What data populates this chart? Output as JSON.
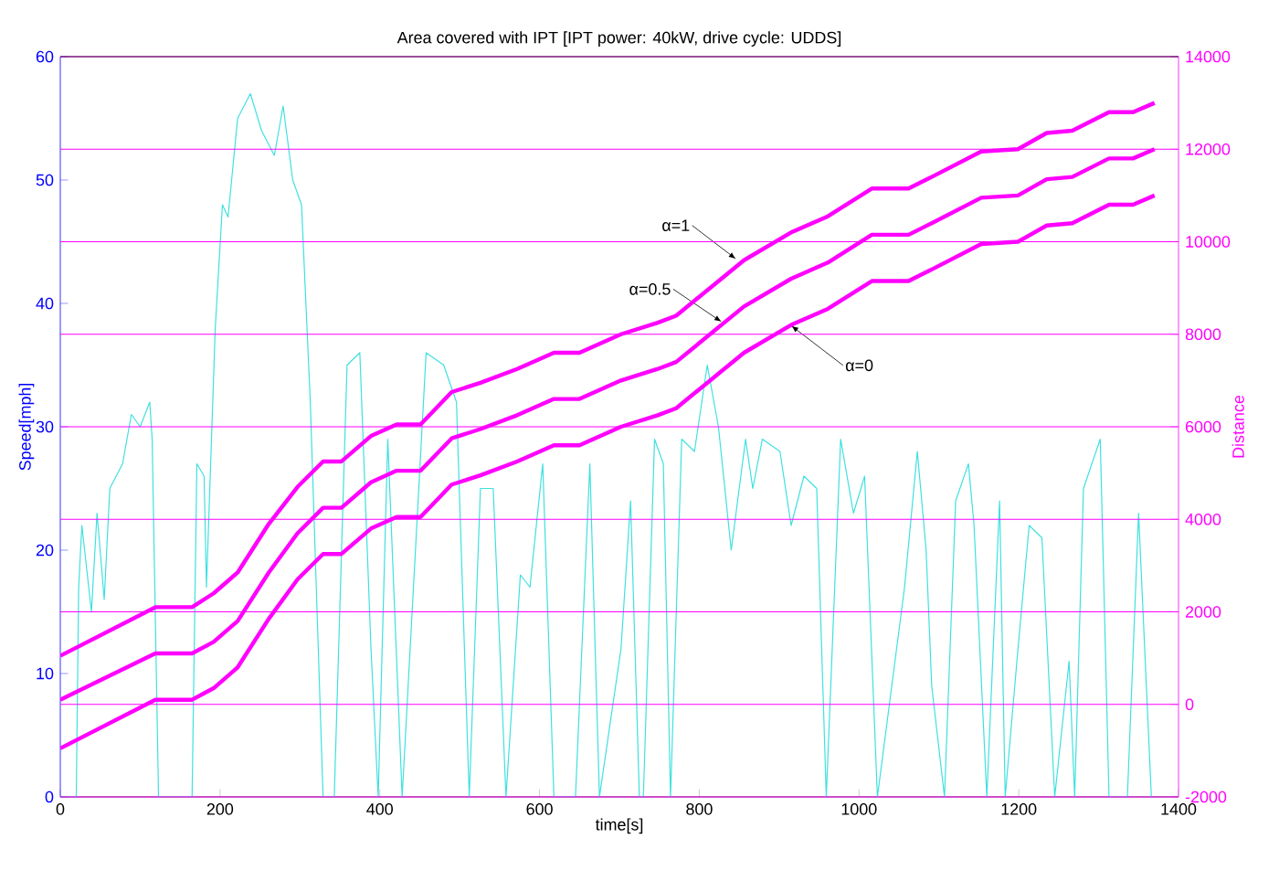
{
  "chart_data": {
    "type": "line",
    "title": "Area covered with IPT [IPT power: 40kW, drive cycle: UDDS]",
    "xlabel": "time[s]",
    "ylabel": "Speed[mph]",
    "y2label": "Distance",
    "xlim": [
      0,
      1400
    ],
    "xticks": [
      0,
      200,
      400,
      600,
      800,
      1000,
      1200,
      1400
    ],
    "ylim": [
      0,
      60
    ],
    "yticks": [
      0,
      10,
      20,
      30,
      40,
      50,
      60
    ],
    "y2lim": [
      -2000,
      14000
    ],
    "y2ticks": [
      -2000,
      0,
      2000,
      4000,
      6000,
      8000,
      10000,
      12000,
      14000
    ],
    "grid": "y",
    "marker": "none",
    "line_style": "solid",
    "series": [
      {
        "color": "#40e0e0",
        "x": [
          0,
          20,
          23,
          27,
          39,
          46,
          55,
          62,
          78,
          89,
          100,
          112,
          115,
          123,
          165,
          171,
          180,
          183,
          194,
          203,
          210,
          222,
          238,
          252,
          268,
          279,
          291,
          302,
          313,
          329,
          343,
          359,
          375,
          389,
          398,
          410,
          428,
          458,
          480,
          496,
          512,
          526,
          542,
          558,
          576,
          588,
          604,
          618,
          645,
          663,
          675,
          702,
          714,
          725,
          730,
          744,
          755,
          764,
          778,
          794,
          810,
          824,
          840,
          858,
          867,
          879,
          901,
          915,
          931,
          947,
          959,
          977,
          993,
          1007,
          1023,
          1057,
          1073,
          1084,
          1091,
          1107,
          1121,
          1137,
          1144,
          1160,
          1176,
          1183,
          1199,
          1213,
          1229,
          1245,
          1263,
          1270,
          1281,
          1302,
          1313,
          1336,
          1350,
          1366
        ],
        "values": [
          0,
          0,
          17,
          22,
          15,
          23,
          16,
          25,
          27,
          31,
          30,
          32,
          29,
          0,
          0,
          27,
          26,
          17,
          38,
          48,
          47,
          55,
          57,
          54,
          52,
          56,
          50,
          48,
          32,
          0,
          0,
          35,
          36,
          12,
          0,
          29,
          0,
          36,
          35,
          32,
          0,
          25,
          25,
          0,
          18,
          17,
          27,
          0,
          0,
          27,
          0,
          12,
          24,
          0,
          0,
          29,
          27,
          0,
          29,
          28,
          35,
          30,
          20,
          29,
          25,
          29,
          28,
          22,
          26,
          25,
          0,
          29,
          23,
          26,
          0,
          17,
          28,
          20,
          9,
          0,
          24,
          27,
          22,
          0,
          24,
          0,
          12,
          22,
          21,
          0,
          11,
          0,
          25,
          29,
          0,
          0,
          23,
          0
        ]
      },
      {
        "color": "#ff00ff",
        "axis": "y2",
        "x": [
          0,
          119,
          165,
          192,
          222,
          261,
          297,
          329,
          352,
          389,
          421,
          451,
          490,
          526,
          572,
          618,
          650,
          702,
          748,
          771,
          856,
          915,
          961,
          1016,
          1062,
          1091,
          1153,
          1199,
          1235,
          1267,
          1313,
          1343,
          1370
        ],
        "values": [
          1050,
          2100,
          2100,
          2400,
          2850,
          3900,
          4700,
          5250,
          5250,
          5800,
          6050,
          6050,
          6750,
          6950,
          7250,
          7600,
          7600,
          8000,
          8250,
          8400,
          9600,
          10200,
          10550,
          11150,
          11150,
          11400,
          11950,
          12000,
          12350,
          12400,
          12800,
          12800,
          13000
        ]
      },
      {
        "color": "#ff00ff",
        "axis": "y2",
        "x": [
          0,
          119,
          165,
          192,
          222,
          261,
          297,
          329,
          352,
          389,
          421,
          451,
          490,
          526,
          572,
          618,
          650,
          702,
          748,
          771,
          856,
          915,
          961,
          1016,
          1062,
          1091,
          1153,
          1199,
          1235,
          1267,
          1313,
          1343,
          1370
        ],
        "values": [
          100,
          1100,
          1100,
          1350,
          1800,
          2850,
          3700,
          4250,
          4250,
          4800,
          5050,
          5050,
          5750,
          5950,
          6250,
          6600,
          6600,
          7000,
          7250,
          7400,
          8600,
          9200,
          9550,
          10150,
          10150,
          10400,
          10950,
          11000,
          11350,
          11400,
          11800,
          11800,
          12000
        ]
      },
      {
        "color": "#ff00ff",
        "axis": "y2",
        "x": [
          0,
          119,
          165,
          192,
          222,
          261,
          297,
          329,
          352,
          389,
          421,
          451,
          490,
          526,
          572,
          618,
          650,
          702,
          748,
          771,
          856,
          915,
          961,
          1016,
          1062,
          1091,
          1153,
          1199,
          1235,
          1267,
          1313,
          1343,
          1370
        ],
        "values": [
          -950,
          100,
          100,
          350,
          800,
          1850,
          2700,
          3250,
          3250,
          3800,
          4050,
          4050,
          4750,
          4950,
          5250,
          5600,
          5600,
          6000,
          6250,
          6400,
          7600,
          8200,
          8550,
          9150,
          9150,
          9400,
          9950,
          10000,
          10350,
          10400,
          10800,
          10800,
          11000
        ]
      }
    ],
    "annotations": [
      {
        "text": "α=1",
        "x": 846,
        "y": 43.6
      },
      {
        "text": "α=0.5",
        "x": 828,
        "y": 38.5
      },
      {
        "text": "α=0",
        "x": 915,
        "y": 38.2
      }
    ]
  }
}
